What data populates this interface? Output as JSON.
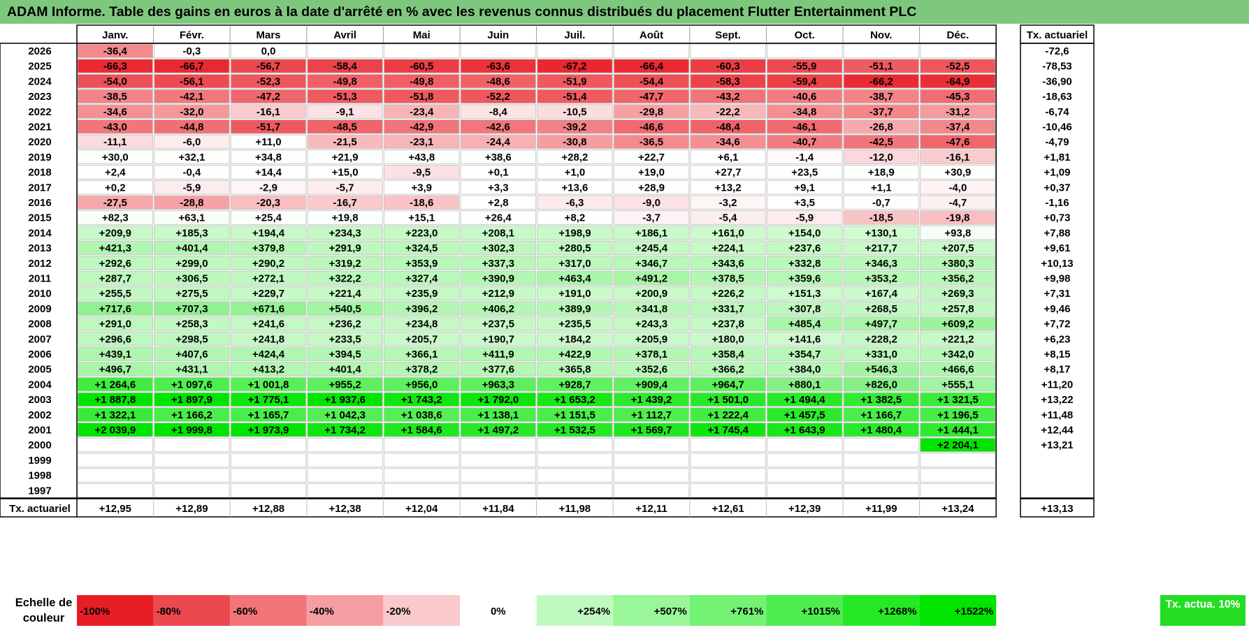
{
  "title": "ADAM Informe. Table des gains en euros à la date d'arrêté en % avec les revenus connus distribués du placement Flutter Entertainment PLC",
  "colors": {
    "header_bg": "#7ec87e",
    "neg_max": "#e8262b",
    "pos_max": "#00e600",
    "border": "#000000",
    "grid": "#c8c8c8"
  },
  "chart_data": {
    "type": "heatmap",
    "columns": [
      "Janv.",
      "Févr.",
      "Mars",
      "Avril",
      "Mai",
      "Juin",
      "Juil.",
      "Août",
      "Sept.",
      "Oct.",
      "Nov.",
      "Déc."
    ],
    "total_label": "Tx. actuariel",
    "rows": [
      {
        "year": "2026",
        "values": [
          "-36,4",
          "-0,3",
          "0,0",
          "",
          "",
          "",
          "",
          "",
          "",
          "",
          "",
          ""
        ],
        "rate": "-72,6"
      },
      {
        "year": "2025",
        "values": [
          "-66,3",
          "-66,7",
          "-56,7",
          "-58,4",
          "-60,5",
          "-63,6",
          "-67,2",
          "-66,4",
          "-60,3",
          "-55,9",
          "-51,1",
          "-52,5"
        ],
        "rate": "-78,53"
      },
      {
        "year": "2024",
        "values": [
          "-54,0",
          "-56,1",
          "-52,3",
          "-49,8",
          "-49,8",
          "-48,6",
          "-51,9",
          "-54,4",
          "-58,3",
          "-59,4",
          "-66,2",
          "-64,9"
        ],
        "rate": "-36,90"
      },
      {
        "year": "2023",
        "values": [
          "-38,5",
          "-42,1",
          "-47,2",
          "-51,3",
          "-51,8",
          "-52,2",
          "-51,4",
          "-47,7",
          "-43,2",
          "-40,6",
          "-38,7",
          "-45,3"
        ],
        "rate": "-18,63"
      },
      {
        "year": "2022",
        "values": [
          "-34,6",
          "-32,0",
          "-16,1",
          "-9,1",
          "-23,4",
          "-8,4",
          "-10,5",
          "-29,8",
          "-22,2",
          "-34,8",
          "-37,7",
          "-31,2"
        ],
        "rate": "-6,74"
      },
      {
        "year": "2021",
        "values": [
          "-43,0",
          "-44,8",
          "-51,7",
          "-48,5",
          "-42,9",
          "-42,6",
          "-39,2",
          "-46,6",
          "-48,4",
          "-46,1",
          "-26,8",
          "-37,4"
        ],
        "rate": "-10,46"
      },
      {
        "year": "2020",
        "values": [
          "-11,1",
          "-6,0",
          "+11,0",
          "-21,5",
          "-23,1",
          "-24,4",
          "-30,8",
          "-36,5",
          "-34,6",
          "-40,7",
          "-42,5",
          "-47,6"
        ],
        "rate": "-4,79"
      },
      {
        "year": "2019",
        "values": [
          "+30,0",
          "+32,1",
          "+34,8",
          "+21,9",
          "+43,8",
          "+38,6",
          "+28,2",
          "+22,7",
          "+6,1",
          "-1,4",
          "-12,0",
          "-16,1"
        ],
        "rate": "+1,81"
      },
      {
        "year": "2018",
        "values": [
          "+2,4",
          "-0,4",
          "+14,4",
          "+15,0",
          "-9,5",
          "+0,1",
          "+1,0",
          "+19,0",
          "+27,7",
          "+23,5",
          "+18,9",
          "+30,9"
        ],
        "rate": "+1,09"
      },
      {
        "year": "2017",
        "values": [
          "+0,2",
          "-5,9",
          "-2,9",
          "-5,7",
          "+3,9",
          "+3,3",
          "+13,6",
          "+28,9",
          "+13,2",
          "+9,1",
          "+1,1",
          "-4,0"
        ],
        "rate": "+0,37"
      },
      {
        "year": "2016",
        "values": [
          "-27,5",
          "-28,8",
          "-20,3",
          "-16,7",
          "-18,6",
          "+2,8",
          "-6,3",
          "-9,0",
          "-3,2",
          "+3,5",
          "-0,7",
          "-4,7"
        ],
        "rate": "-1,16"
      },
      {
        "year": "2015",
        "values": [
          "+82,3",
          "+63,1",
          "+25,4",
          "+19,8",
          "+15,1",
          "+26,4",
          "+8,2",
          "-3,7",
          "-5,4",
          "-5,9",
          "-18,5",
          "-19,8"
        ],
        "rate": "+0,73"
      },
      {
        "year": "2014",
        "values": [
          "+209,9",
          "+185,3",
          "+194,4",
          "+234,3",
          "+223,0",
          "+208,1",
          "+198,9",
          "+186,1",
          "+161,0",
          "+154,0",
          "+130,1",
          "+93,8"
        ],
        "rate": "+7,88"
      },
      {
        "year": "2013",
        "values": [
          "+421,3",
          "+401,4",
          "+379,8",
          "+291,9",
          "+324,5",
          "+302,3",
          "+280,5",
          "+245,4",
          "+224,1",
          "+237,6",
          "+217,7",
          "+207,5"
        ],
        "rate": "+9,61"
      },
      {
        "year": "2012",
        "values": [
          "+292,6",
          "+299,0",
          "+290,2",
          "+319,2",
          "+353,9",
          "+337,3",
          "+317,0",
          "+346,7",
          "+343,6",
          "+332,8",
          "+346,3",
          "+380,3"
        ],
        "rate": "+10,13"
      },
      {
        "year": "2011",
        "values": [
          "+287,7",
          "+306,5",
          "+272,1",
          "+322,2",
          "+327,4",
          "+390,9",
          "+463,4",
          "+491,2",
          "+378,5",
          "+359,6",
          "+353,2",
          "+356,2"
        ],
        "rate": "+9,98"
      },
      {
        "year": "2010",
        "values": [
          "+255,5",
          "+275,5",
          "+229,7",
          "+221,4",
          "+235,9",
          "+212,9",
          "+191,0",
          "+200,9",
          "+226,2",
          "+151,3",
          "+167,4",
          "+269,3"
        ],
        "rate": "+7,31"
      },
      {
        "year": "2009",
        "values": [
          "+717,6",
          "+707,3",
          "+671,6",
          "+540,5",
          "+396,2",
          "+406,2",
          "+389,9",
          "+341,8",
          "+331,7",
          "+307,8",
          "+268,5",
          "+257,8"
        ],
        "rate": "+9,46"
      },
      {
        "year": "2008",
        "values": [
          "+291,0",
          "+258,3",
          "+241,6",
          "+236,2",
          "+234,8",
          "+237,5",
          "+235,5",
          "+243,3",
          "+237,8",
          "+485,4",
          "+497,7",
          "+609,2"
        ],
        "rate": "+7,72"
      },
      {
        "year": "2007",
        "values": [
          "+296,6",
          "+298,5",
          "+241,8",
          "+233,5",
          "+205,7",
          "+190,7",
          "+184,2",
          "+205,9",
          "+180,0",
          "+141,6",
          "+228,2",
          "+221,2"
        ],
        "rate": "+6,23"
      },
      {
        "year": "2006",
        "values": [
          "+439,1",
          "+407,6",
          "+424,4",
          "+394,5",
          "+366,1",
          "+411,9",
          "+422,9",
          "+378,1",
          "+358,4",
          "+354,7",
          "+331,0",
          "+342,0"
        ],
        "rate": "+8,15"
      },
      {
        "year": "2005",
        "values": [
          "+496,7",
          "+431,1",
          "+413,2",
          "+401,4",
          "+378,2",
          "+377,6",
          "+365,8",
          "+352,6",
          "+366,2",
          "+384,0",
          "+546,3",
          "+466,6"
        ],
        "rate": "+8,17"
      },
      {
        "year": "2004",
        "values": [
          "+1 264,6",
          "+1 097,6",
          "+1 001,8",
          "+955,2",
          "+956,0",
          "+963,3",
          "+928,7",
          "+909,4",
          "+964,7",
          "+880,1",
          "+826,0",
          "+555,1"
        ],
        "rate": "+11,20"
      },
      {
        "year": "2003",
        "values": [
          "+1 887,8",
          "+1 897,9",
          "+1 775,1",
          "+1 937,6",
          "+1 743,2",
          "+1 792,0",
          "+1 653,2",
          "+1 439,2",
          "+1 501,0",
          "+1 494,4",
          "+1 382,5",
          "+1 321,5"
        ],
        "rate": "+13,22"
      },
      {
        "year": "2002",
        "values": [
          "+1 322,1",
          "+1 166,2",
          "+1 165,7",
          "+1 042,3",
          "+1 038,6",
          "+1 138,1",
          "+1 151,5",
          "+1 112,7",
          "+1 222,4",
          "+1 457,5",
          "+1 166,7",
          "+1 196,5"
        ],
        "rate": "+11,48"
      },
      {
        "year": "2001",
        "values": [
          "+2 039,9",
          "+1 999,8",
          "+1 973,9",
          "+1 734,2",
          "+1 584,6",
          "+1 497,2",
          "+1 532,5",
          "+1 569,7",
          "+1 745,4",
          "+1 643,9",
          "+1 480,4",
          "+1 444,1"
        ],
        "rate": "+12,44"
      },
      {
        "year": "2000",
        "values": [
          "",
          "",
          "",
          "",
          "",
          "",
          "",
          "",
          "",
          "",
          "",
          "+2 204,1"
        ],
        "rate": "+13,21"
      },
      {
        "year": "1999",
        "values": [
          "",
          "",
          "",
          "",
          "",
          "",
          "",
          "",
          "",
          "",
          "",
          ""
        ],
        "rate": ""
      },
      {
        "year": "1998",
        "values": [
          "",
          "",
          "",
          "",
          "",
          "",
          "",
          "",
          "",
          "",
          "",
          ""
        ],
        "rate": ""
      },
      {
        "year": "1997",
        "values": [
          "",
          "",
          "",
          "",
          "",
          "",
          "",
          "",
          "",
          "",
          "",
          ""
        ],
        "rate": ""
      }
    ],
    "total_row": {
      "label": "Tx. actuariel",
      "values": [
        "+12,95",
        "+12,89",
        "+12,88",
        "+12,38",
        "+12,04",
        "+11,84",
        "+11,98",
        "+12,11",
        "+12,61",
        "+12,39",
        "+11,99",
        "+13,24"
      ],
      "rate": "+13,13"
    },
    "legend": {
      "label": "Echelle de couleur",
      "items": [
        {
          "text": "-100%",
          "value": -100
        },
        {
          "text": "-80%",
          "value": -80
        },
        {
          "text": "-60%",
          "value": -60
        },
        {
          "text": "-40%",
          "value": -40
        },
        {
          "text": "-20%",
          "value": -20
        },
        {
          "text": "0%",
          "value": 0
        },
        {
          "text": "+254%",
          "value": 254
        },
        {
          "text": "+507%",
          "value": 507
        },
        {
          "text": "+761%",
          "value": 761
        },
        {
          "text": "+1015%",
          "value": 1015
        },
        {
          "text": "+1268%",
          "value": 1268
        },
        {
          "text": "+1522%",
          "value": 1522
        }
      ],
      "actua_label": "Tx. actua. 10%"
    }
  }
}
